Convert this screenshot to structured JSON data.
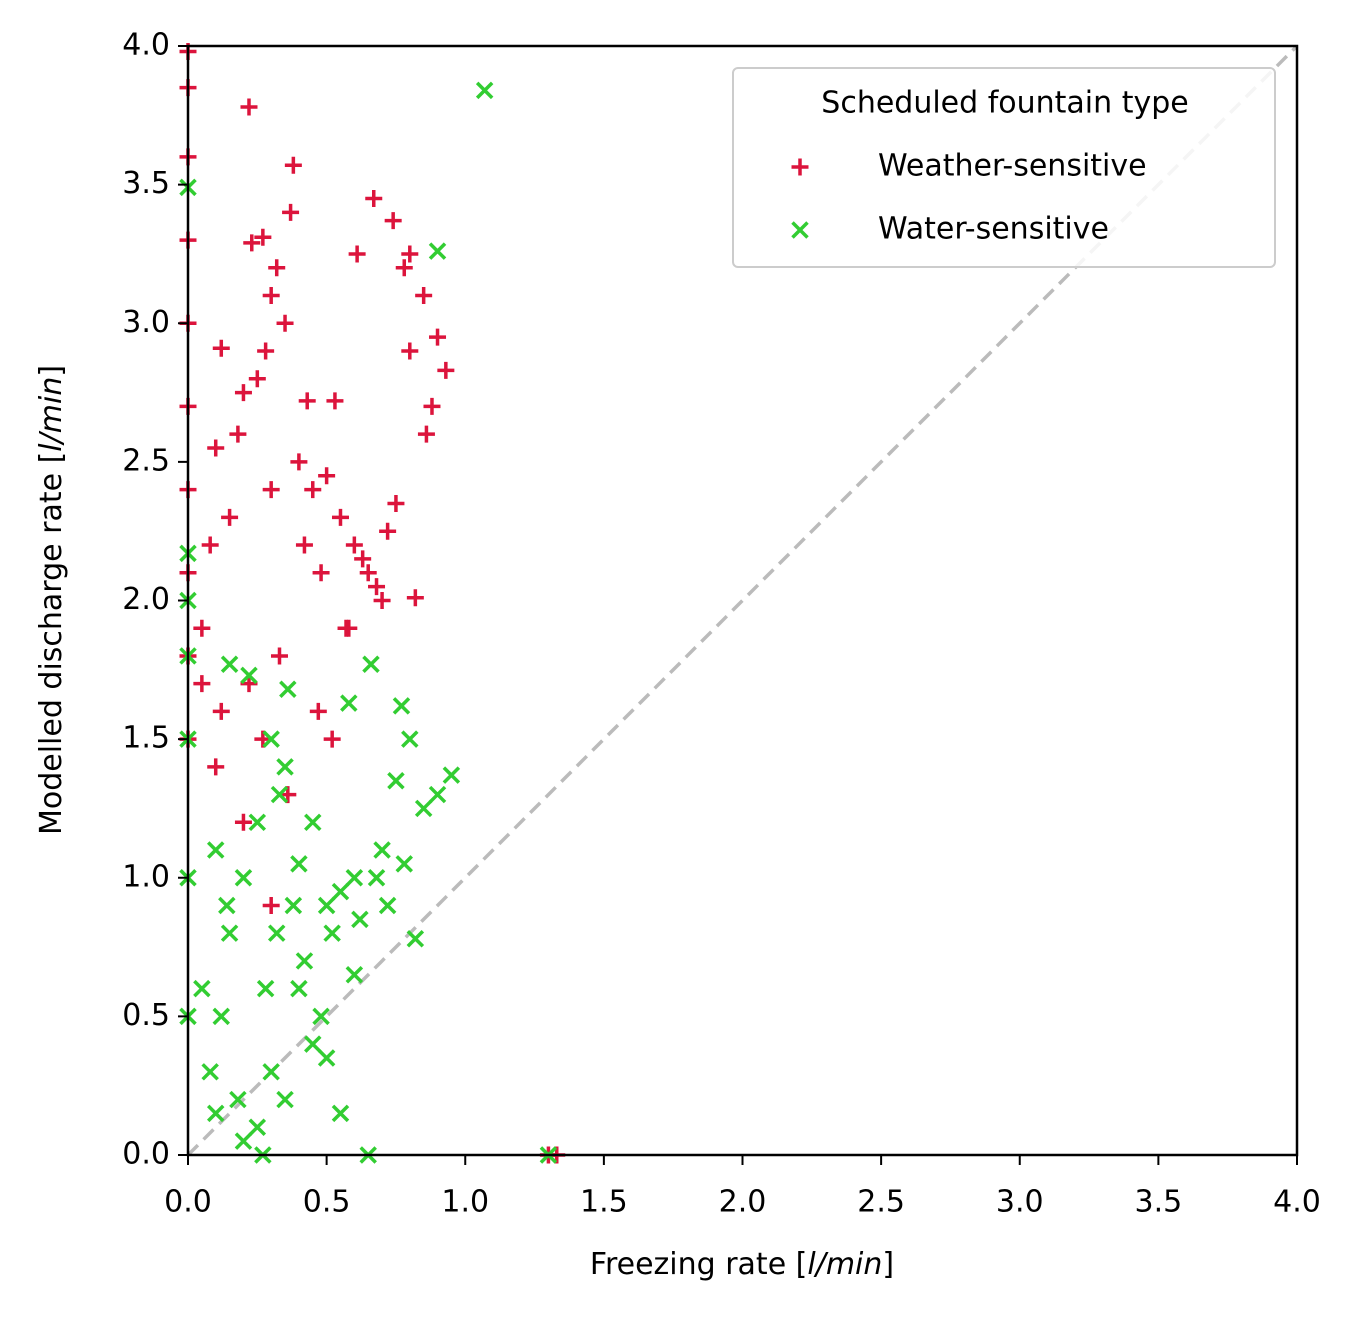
{
  "chart_data": {
    "type": "scatter",
    "xlabel": [
      "Freezing rate [",
      "l/min",
      "]"
    ],
    "ylabel": [
      "Modelled discharge rate [",
      "l/min",
      "]"
    ],
    "legend_title": "Scheduled fountain type",
    "legend": "upper right",
    "xlim": [
      0,
      4
    ],
    "ylim": [
      0,
      4
    ],
    "xticks": [
      {
        "value": 0,
        "label": "0.0"
      },
      0.5,
      {
        "value": 1,
        "label": "1.0"
      },
      1.5,
      {
        "value": 2,
        "label": "2.0"
      },
      2.5,
      {
        "value": 3,
        "label": "3.0"
      },
      3.5,
      {
        "value": 4,
        "label": "4.0"
      }
    ],
    "yticks": [
      {
        "value": 0,
        "label": "0.0"
      },
      0.5,
      {
        "value": 1,
        "label": "1.0"
      },
      1.5,
      {
        "value": 2,
        "label": "2.0"
      },
      2.5,
      {
        "value": 3,
        "label": "3.0"
      },
      3.5,
      {
        "value": 4,
        "label": "4.0"
      }
    ],
    "grid": false,
    "series": [
      {
        "name": "Weather-sensitive",
        "color": "#dc143c",
        "marker": "plus",
        "x": [
          0,
          0,
          0,
          0,
          0,
          0,
          0,
          0,
          0,
          0,
          0.22,
          0.38,
          0.67,
          0.37,
          0.74,
          0.27,
          0.23,
          0.61,
          0.8,
          0.93,
          0.82,
          1.3,
          1.33,
          0.12,
          0.43,
          0.53,
          0.3,
          0.32,
          0.35,
          0.2,
          0.18,
          0.25,
          0.28,
          0.4,
          0.45,
          0.5,
          0.55,
          0.6,
          0.65,
          0.7,
          0.75,
          0.78,
          0.85,
          0.88,
          0.15,
          0.1,
          0.08,
          0.05,
          0.3,
          0.42,
          0.48,
          0.58,
          0.63,
          0.72,
          0.33,
          0.22,
          0.12,
          0.27,
          0.47,
          0.52,
          0.57,
          0.36,
          0.68,
          0.8,
          0.86,
          0.9,
          0.05,
          0.1,
          0.2,
          0.3
        ],
        "values": [
          3.98,
          3.85,
          3.6,
          3.3,
          3.0,
          2.7,
          2.4,
          2.1,
          1.8,
          1.5,
          3.78,
          3.57,
          3.45,
          3.4,
          3.37,
          3.31,
          3.29,
          3.25,
          3.25,
          2.83,
          2.01,
          0,
          0,
          2.91,
          2.72,
          2.72,
          3.1,
          3.2,
          3.0,
          2.75,
          2.6,
          2.8,
          2.9,
          2.5,
          2.4,
          2.45,
          2.3,
          2.2,
          2.1,
          2.0,
          2.35,
          3.2,
          3.1,
          2.7,
          2.3,
          2.55,
          2.2,
          1.9,
          2.4,
          2.2,
          2.1,
          1.9,
          2.15,
          2.25,
          1.8,
          1.7,
          1.6,
          1.5,
          1.6,
          1.5,
          1.9,
          1.3,
          2.05,
          2.9,
          2.6,
          2.95,
          1.7,
          1.4,
          1.2,
          0.9
        ]
      },
      {
        "name": "Water-sensitive",
        "color": "#32cd32",
        "marker": "x",
        "x": [
          1.07,
          0.9,
          0,
          0,
          0,
          0,
          0,
          0,
          0,
          0.65,
          1.3,
          0.82,
          0.95,
          0.66,
          0.15,
          0.22,
          0.36,
          0.58,
          0.77,
          0.8,
          0.75,
          0.85,
          0.9,
          0.7,
          0.6,
          0.5,
          0.45,
          0.4,
          0.35,
          0.3,
          0.25,
          0.2,
          0.15,
          0.1,
          0.05,
          0.08,
          0.12,
          0.18,
          0.28,
          0.32,
          0.38,
          0.42,
          0.48,
          0.52,
          0.55,
          0.62,
          0.68,
          0.72,
          0.78,
          0.3,
          0.25,
          0.35,
          0.45,
          0.55,
          0.2,
          0.1,
          0.4,
          0.5,
          0.6,
          0.33,
          0.27,
          0.14
        ],
        "values": [
          3.84,
          3.26,
          3.49,
          2.17,
          2.0,
          1.8,
          1.5,
          1.0,
          0.5,
          0,
          0,
          0.78,
          1.37,
          1.77,
          1.77,
          1.73,
          1.68,
          1.63,
          1.62,
          1.5,
          1.35,
          1.25,
          1.3,
          1.1,
          1.0,
          0.9,
          1.2,
          1.05,
          1.4,
          1.5,
          1.2,
          1.0,
          0.8,
          1.1,
          0.6,
          0.3,
          0.5,
          0.2,
          0.6,
          0.8,
          0.9,
          0.7,
          0.5,
          0.8,
          0.95,
          0.85,
          1.0,
          0.9,
          1.05,
          0.3,
          0.1,
          0.2,
          0.4,
          0.15,
          0.05,
          0.15,
          0.6,
          0.35,
          0.65,
          1.3,
          0.0,
          0.9
        ]
      }
    ]
  }
}
